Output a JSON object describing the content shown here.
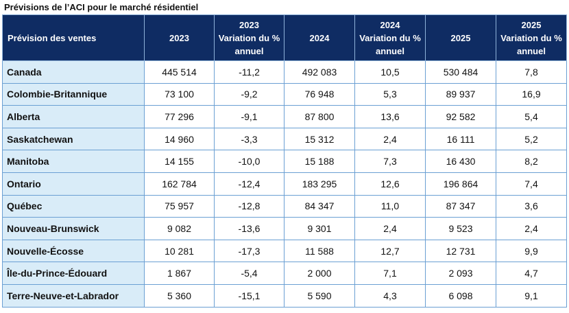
{
  "title": "Prévisions de l’ACI pour le marché résidentiel",
  "table": {
    "headers": [
      {
        "lines": [
          "Prévision des ventes"
        ]
      },
      {
        "lines": [
          "2023"
        ]
      },
      {
        "lines": [
          "2023",
          "Variation du %",
          "annuel"
        ]
      },
      {
        "lines": [
          "2024"
        ]
      },
      {
        "lines": [
          "2024",
          "Variation du %",
          "annuel"
        ]
      },
      {
        "lines": [
          "2025"
        ]
      },
      {
        "lines": [
          "2025",
          "Variation du %",
          "annuel"
        ]
      }
    ],
    "rows": [
      [
        "Canada",
        "445 514",
        "-11,2",
        "492 083",
        "10,5",
        "530 484",
        "7,8"
      ],
      [
        "Colombie-Britannique",
        "73 100",
        "-9,2",
        "76 948",
        "5,3",
        "89 937",
        "16,9"
      ],
      [
        "Alberta",
        "77 296",
        "-9,1",
        "87 800",
        "13,6",
        "92 582",
        "5,4"
      ],
      [
        "Saskatchewan",
        "14 960",
        "-3,3",
        "15 312",
        "2,4",
        "16 111",
        "5,2"
      ],
      [
        "Manitoba",
        "14 155",
        "-10,0",
        "15 188",
        "7,3",
        "16 430",
        "8,2"
      ],
      [
        "Ontario",
        "162 784",
        "-12,4",
        "183 295",
        "12,6",
        "196 864",
        "7,4"
      ],
      [
        "Québec",
        "75 957",
        "-12,8",
        "84 347",
        "11,0",
        "87 347",
        "3,6"
      ],
      [
        "Nouveau-Brunswick",
        "9 082",
        "-13,6",
        "9 301",
        "2,4",
        "9 523",
        "2,4"
      ],
      [
        "Nouvelle-Écosse",
        "10 281",
        "-17,3",
        "11 588",
        "12,7",
        "12 731",
        "9,9"
      ],
      [
        "Île-du-Prince-Édouard",
        "1 867",
        "-5,4",
        "2 000",
        "7,1",
        "2 093",
        "4,7"
      ],
      [
        "Terre-Neuve-et-Labrador",
        "5 360",
        "-15,1",
        "5 590",
        "4,3",
        "6 098",
        "9,1"
      ]
    ]
  },
  "colors": {
    "header_bg": "#0f2c63",
    "header_text": "#ffffff",
    "region_bg": "#d9ecf8",
    "border": "#6a9fd3"
  }
}
